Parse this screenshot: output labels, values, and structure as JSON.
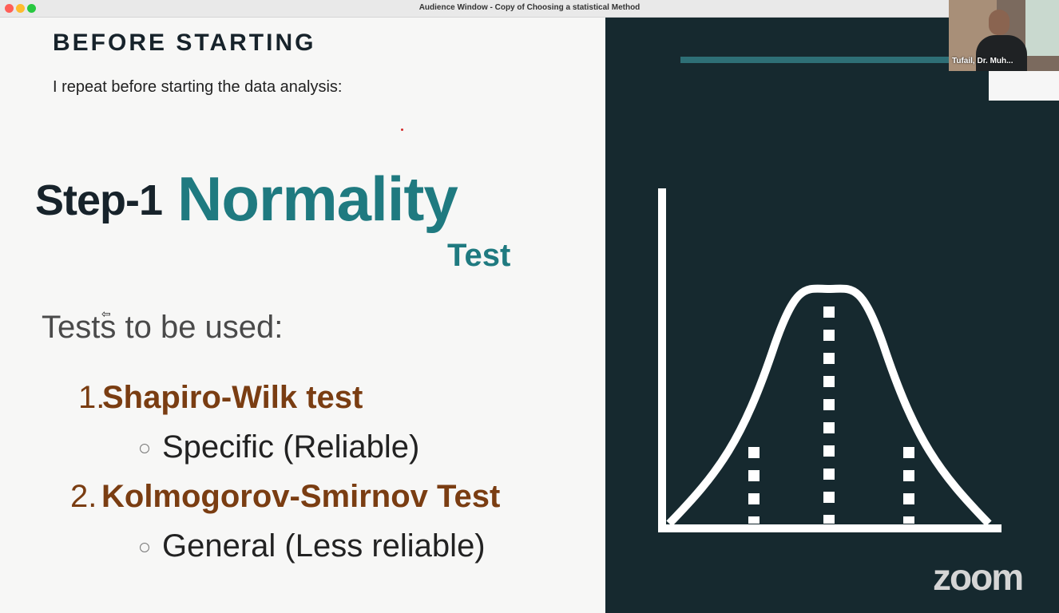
{
  "window": {
    "title": "Audience Window - Copy of Choosing a statistical Method"
  },
  "slide": {
    "heading": "BEFORE STARTING",
    "subtext": "I repeat before starting the data analysis:",
    "step_label": "Step-1",
    "step_title": "Normality",
    "step_suffix": "Test",
    "tests_label": "Tests to be used:",
    "tests": [
      {
        "number": "1.",
        "name": "Shapiro-Wilk test",
        "note": "Specific (Reliable)"
      },
      {
        "number": "2.",
        "name": "Kolmogorov-Smirnov Test",
        "note": "General (Less reliable)"
      }
    ]
  },
  "video": {
    "participant_name": "Tufail, Dr. Muh..."
  },
  "branding": {
    "logo_text": "zoom"
  },
  "colors": {
    "slide_dark_panel": "#16292f",
    "accent_teal": "#1f7a80",
    "accent_brown": "#7a3d12",
    "heading_dark": "#17232b"
  },
  "icons": [
    "normal-distribution-graphic",
    "cursor-icon"
  ]
}
